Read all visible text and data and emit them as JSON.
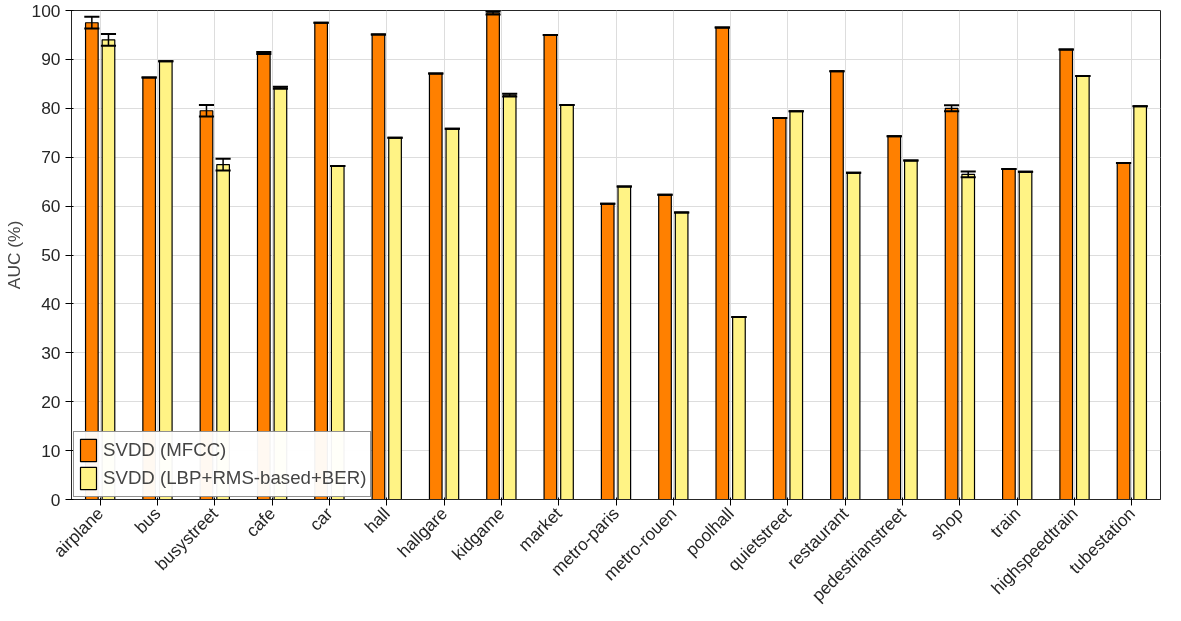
{
  "chart_data": {
    "type": "bar",
    "ylabel": "AUC (%)",
    "categories": [
      "airplane",
      "bus",
      "busystreet",
      "cafe",
      "car",
      "hall",
      "hallgare",
      "kidgame",
      "market",
      "metro-paris",
      "metro-rouen",
      "poolhall",
      "quietstreet",
      "restaurant",
      "pedestrianstreet",
      "shop",
      "train",
      "highspeedtrain",
      "tubestation"
    ],
    "series": [
      {
        "name": "SVDD (MFCC)",
        "color": "#ff8000",
        "values": [
          97.5,
          86.3,
          79.5,
          91.3,
          97.5,
          95.1,
          87.1,
          99.5,
          95,
          60.5,
          62.3,
          96.5,
          78,
          87.6,
          74.3,
          80,
          67.6,
          92,
          68.8
        ],
        "errors": [
          1.2,
          0,
          1.2,
          0.2,
          0,
          0,
          0,
          0.3,
          0,
          0,
          0,
          0,
          0,
          0,
          0,
          0.6,
          0,
          0,
          0
        ]
      },
      {
        "name": "SVDD (LBP+RMS-based+BER)",
        "color": "#fff385",
        "values": [
          94,
          89.6,
          68.5,
          84.2,
          68.2,
          74,
          75.8,
          82.7,
          80.7,
          64,
          58.7,
          37.3,
          79.4,
          66.8,
          69.3,
          66.5,
          67,
          86.6,
          80.4
        ],
        "errors": [
          1.2,
          0,
          1.2,
          0.2,
          0,
          0,
          0,
          0.3,
          0,
          0,
          0,
          0,
          0,
          0,
          0,
          0.6,
          0,
          0,
          0
        ]
      }
    ],
    "ylim": [
      0,
      100
    ],
    "yticks": [
      0,
      10,
      20,
      30,
      40,
      50,
      60,
      70,
      80,
      90,
      100
    ],
    "grid": true,
    "legend": "bottom left"
  }
}
